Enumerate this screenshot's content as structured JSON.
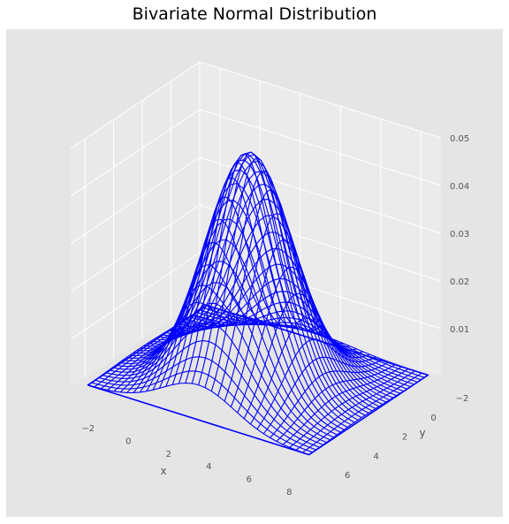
{
  "chart_data": {
    "type": "surface-wireframe",
    "title": "Bivariate Normal Distribution",
    "xlabel": "x",
    "ylabel": "y",
    "zlabel": "",
    "x_ticks": [
      "−2",
      "0",
      "2",
      "4",
      "6",
      "8"
    ],
    "y_ticks": [
      "−2",
      "0",
      "2",
      "4",
      "6"
    ],
    "z_ticks": [
      "0.01",
      "0.02",
      "0.03",
      "0.04",
      "0.05"
    ],
    "xlim": [
      -3,
      9
    ],
    "ylim": [
      -2,
      7
    ],
    "zlim": [
      0,
      0.05
    ],
    "distribution": {
      "mean": [
        3,
        3
      ],
      "std": [
        1.8,
        1.8
      ],
      "peak_density": 0.049
    },
    "grid": true,
    "wire_color": "#0000ff",
    "pane_color": "#e5e5e5",
    "background_color": "#e5e5e5",
    "grid_color": "#ffffff"
  }
}
